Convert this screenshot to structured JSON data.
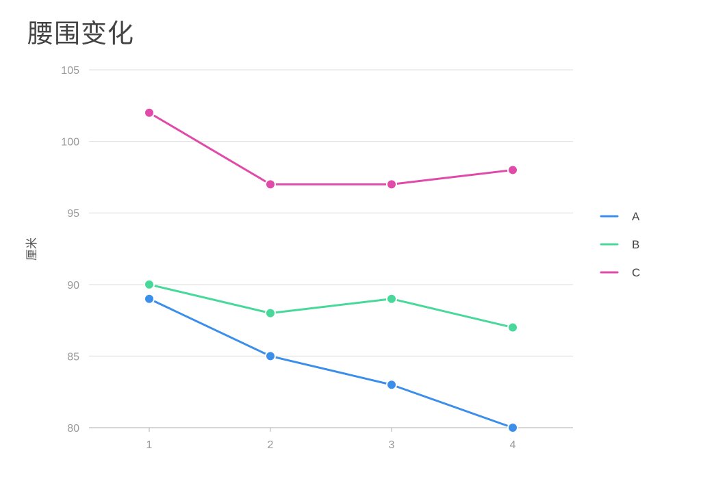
{
  "chart_data": {
    "type": "line",
    "title": "腰围变化",
    "xlabel": "",
    "ylabel": "厘米",
    "x": [
      "1",
      "2",
      "3",
      "4"
    ],
    "ylim": [
      80,
      105
    ],
    "yticks": [
      80,
      85,
      90,
      95,
      100,
      105
    ],
    "grid": true,
    "legend_position": "right",
    "series": [
      {
        "name": "A",
        "color": "#3b8fea",
        "values": [
          89,
          85,
          83,
          80
        ]
      },
      {
        "name": "B",
        "color": "#48d89a",
        "values": [
          90,
          88,
          89,
          87
        ]
      },
      {
        "name": "C",
        "color": "#e04aa8",
        "values": [
          102,
          97,
          97,
          98
        ]
      }
    ]
  }
}
